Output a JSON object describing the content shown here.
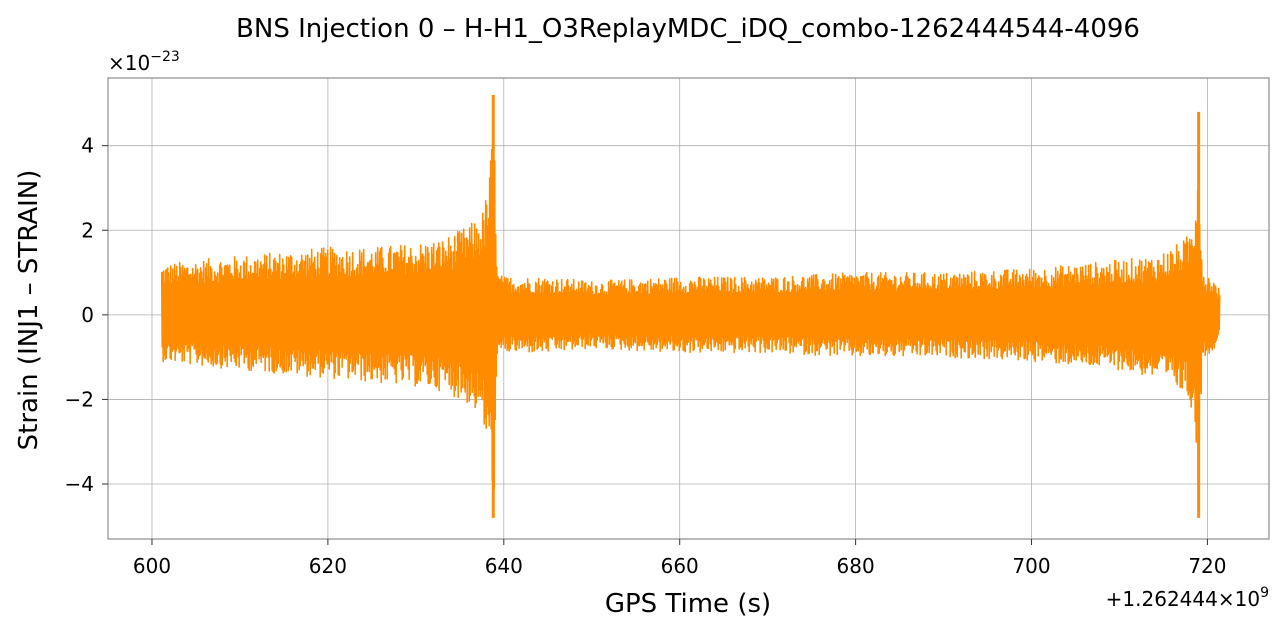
{
  "chart_data": {
    "type": "line",
    "title": "BNS Injection 0 – H-H1_O3ReplayMDC_iDQ_combo-1262444544-4096",
    "xlabel": "GPS Time (s)",
    "ylabel": "Strain (INJ1 – STRAIN)",
    "x_offset_label": "+1.262444×10",
    "x_offset_exp": "9",
    "y_scale_label": "×10",
    "y_scale_exp": "−23",
    "xlim": [
      595,
      727
    ],
    "ylim": [
      -5.3,
      5.6
    ],
    "xticks": [
      600,
      620,
      640,
      660,
      680,
      700,
      720
    ],
    "xtick_labels": [
      "600",
      "620",
      "640",
      "660",
      "680",
      "700",
      "720"
    ],
    "yticks": [
      -4,
      -2,
      0,
      2,
      4
    ],
    "ytick_labels": [
      "−4",
      "−2",
      "0",
      "2",
      "4"
    ],
    "grid": true,
    "series": [
      {
        "color": "#ff8c00",
        "x_range": [
          601.1,
          721.4
        ],
        "envelope": {
          "x": [
            601.1,
            605,
            610,
            615,
            620,
            625,
            630,
            633,
            635,
            636.5,
            637.5,
            638.2,
            638.6,
            638.8,
            639.0,
            639.3,
            640,
            645,
            650,
            660,
            670,
            680,
            690,
            700,
            705,
            710,
            714,
            716,
            717.5,
            718.4,
            718.8,
            719.0,
            719.2,
            719.6,
            720.5,
            721.4
          ],
          "upper": [
            1.2,
            1.3,
            1.4,
            1.5,
            1.6,
            1.6,
            1.7,
            1.8,
            2.0,
            2.2,
            2.4,
            3.0,
            4.0,
            5.2,
            3.5,
            1.0,
            0.9,
            0.9,
            0.8,
            0.9,
            0.9,
            1.0,
            1.0,
            1.1,
            1.2,
            1.3,
            1.4,
            1.6,
            1.8,
            2.2,
            3.5,
            4.8,
            2.0,
            1.0,
            0.9,
            0.6
          ],
          "lower": [
            -1.1,
            -1.2,
            -1.3,
            -1.4,
            -1.5,
            -1.6,
            -1.7,
            -1.8,
            -2.0,
            -2.2,
            -2.5,
            -3.2,
            -4.2,
            -4.8,
            -3.6,
            -1.0,
            -0.9,
            -0.9,
            -0.8,
            -0.9,
            -0.9,
            -1.0,
            -1.0,
            -1.1,
            -1.2,
            -1.3,
            -1.5,
            -1.7,
            -1.9,
            -2.3,
            -3.6,
            -4.8,
            -2.1,
            -1.0,
            -0.9,
            -0.5
          ]
        }
      }
    ]
  }
}
